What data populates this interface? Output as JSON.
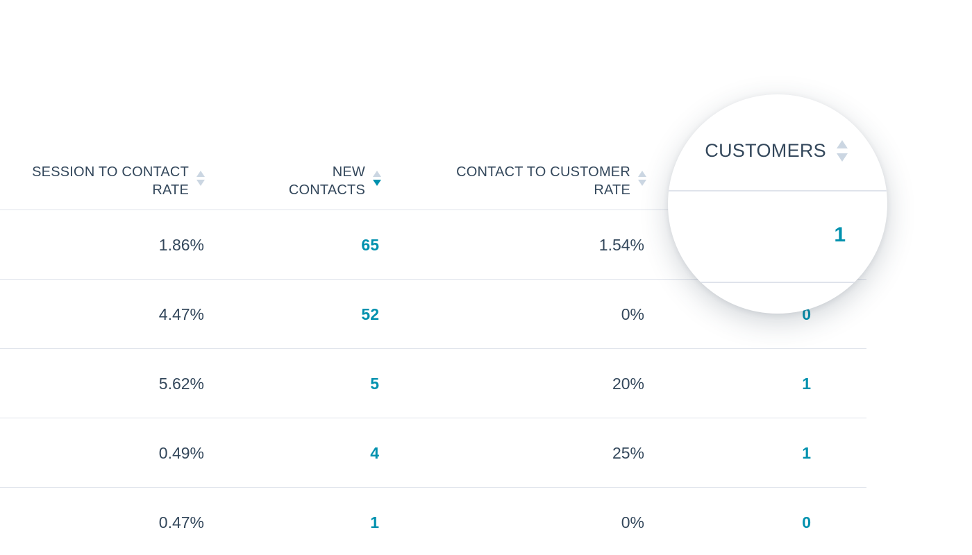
{
  "table": {
    "columns": [
      {
        "line1": "SESSION TO CONTACT",
        "line2": "RATE",
        "sort": "none"
      },
      {
        "line1": "NEW",
        "line2": "CONTACTS",
        "sort": "descending"
      },
      {
        "line1": "CONTACT TO CUSTOMER",
        "line2": "RATE",
        "sort": "none"
      },
      {
        "line1": "CUSTOMERS",
        "sort": "none"
      }
    ],
    "rows": [
      {
        "session_to_contact_rate": "1.86%",
        "new_contacts": "65",
        "contact_to_customer_rate": "1.54%",
        "customers": "1"
      },
      {
        "session_to_contact_rate": "4.47%",
        "new_contacts": "52",
        "contact_to_customer_rate": "0%",
        "customers": "0"
      },
      {
        "session_to_contact_rate": "5.62%",
        "new_contacts": "5",
        "contact_to_customer_rate": "20%",
        "customers": "1"
      },
      {
        "session_to_contact_rate": "0.49%",
        "new_contacts": "4",
        "contact_to_customer_rate": "25%",
        "customers": "1"
      },
      {
        "session_to_contact_rate": "0.47%",
        "new_contacts": "1",
        "contact_to_customer_rate": "0%",
        "customers": "0"
      }
    ]
  },
  "magnifier": {
    "header_label": "CUSTOMERS",
    "value": "1"
  },
  "colors": {
    "text": "#33475b",
    "link": "#0091ae",
    "divider": "#dfe3eb",
    "sort_inactive": "#cbd6e2",
    "sort_active": "#0091ae"
  },
  "icons": {
    "sort": "sort-arrows-icon"
  }
}
